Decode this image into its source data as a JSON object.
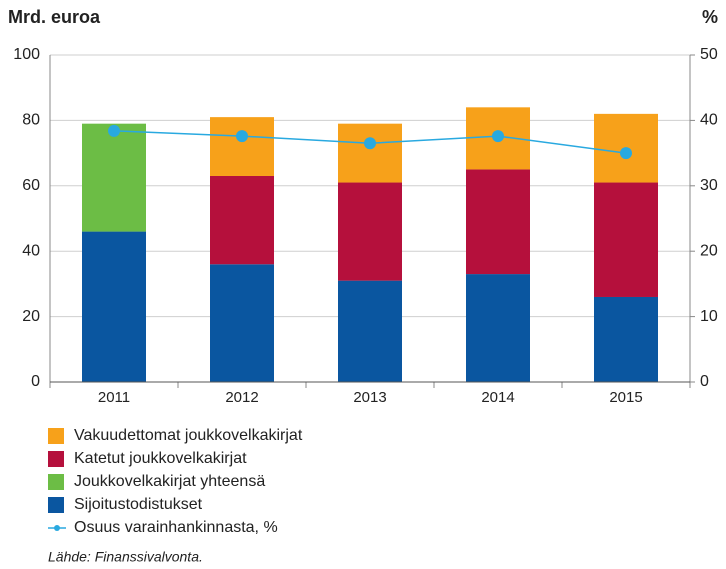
{
  "chart_data": {
    "type": "bar",
    "y_label": "Mrd. euroa",
    "y2_label": "%",
    "categories": [
      "2011",
      "2012",
      "2013",
      "2014",
      "2015"
    ],
    "series": [
      {
        "name": "Vakuudettomat joukkovelkakirjat",
        "color": "#f7a11a",
        "values": [
          null,
          18,
          18,
          19,
          21
        ]
      },
      {
        "name": "Katetut joukkovelkakirjat",
        "color": "#b5103c",
        "values": [
          null,
          27,
          30,
          32,
          35
        ]
      },
      {
        "name": "Joukkovelkakirjat yhteensä",
        "color": "#6cbd45",
        "values": [
          33,
          null,
          null,
          null,
          null
        ]
      },
      {
        "name": "Sijoitustodistukset",
        "color": "#0a56a0",
        "values": [
          46,
          36,
          31,
          33,
          26
        ]
      },
      {
        "name": "Osuus varainhankinnasta, %",
        "color": "#29a9e0",
        "type": "line",
        "axis": "y2",
        "values": [
          38.4,
          37.6,
          36.5,
          37.6,
          35
        ]
      }
    ],
    "ylim": [
      0,
      100
    ],
    "yticks": [
      0,
      20,
      40,
      60,
      80,
      100
    ],
    "y2lim": [
      0,
      50
    ],
    "y2ticks": [
      0,
      10,
      20,
      30,
      40,
      50
    ],
    "grid": true,
    "source": "Lähde: Finanssivalvonta."
  }
}
